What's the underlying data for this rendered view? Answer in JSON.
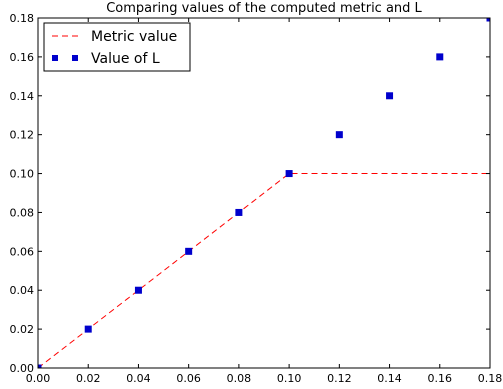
{
  "chart_data": {
    "type": "line",
    "title": "Comparing values of the computed metric and L",
    "xlabel": "",
    "ylabel": "",
    "xlim": [
      0.0,
      0.18
    ],
    "ylim": [
      0.0,
      0.18
    ],
    "x_ticks": [
      "0.00",
      "0.02",
      "0.04",
      "0.06",
      "0.08",
      "0.10",
      "0.12",
      "0.14",
      "0.16",
      "0.18"
    ],
    "y_ticks": [
      "0.00",
      "0.02",
      "0.04",
      "0.06",
      "0.08",
      "0.10",
      "0.12",
      "0.14",
      "0.16",
      "0.18"
    ],
    "grid": false,
    "legend_position": "top-left",
    "series": [
      {
        "name": "Metric value",
        "style": "dashed-line",
        "color": "#ff0000",
        "x": [
          0.0,
          0.1,
          0.18
        ],
        "y": [
          0.0,
          0.1,
          0.1
        ]
      },
      {
        "name": "Value of L",
        "style": "square-markers",
        "color": "#0000cc",
        "x": [
          0.0,
          0.02,
          0.04,
          0.06,
          0.08,
          0.1,
          0.12,
          0.14,
          0.16,
          0.18
        ],
        "y": [
          0.0,
          0.02,
          0.04,
          0.06,
          0.08,
          0.1,
          0.12,
          0.14,
          0.16,
          0.18
        ]
      }
    ]
  }
}
